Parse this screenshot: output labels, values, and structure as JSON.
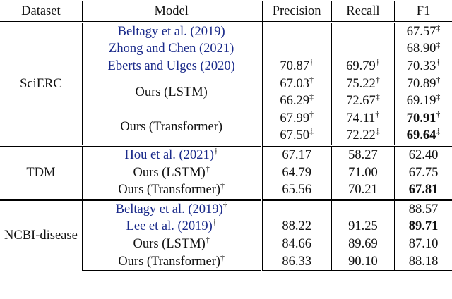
{
  "header": [
    "Dataset",
    "Model",
    "Precision",
    "Recall",
    "F1"
  ],
  "sections": [
    {
      "dataset": "SciERC",
      "models": [
        {
          "name": "Beltagy et al. (2019)",
          "cite": true,
          "results": [
            [
              null,
              null,
              {
                "value": "67.57",
                "mark": "‡"
              }
            ]
          ]
        },
        {
          "name": "Zhong and Chen (2021)",
          "cite": true,
          "results": [
            [
              null,
              null,
              {
                "value": "68.90",
                "mark": "‡"
              }
            ]
          ]
        },
        {
          "name": "Eberts and Ulges (2020)",
          "cite": true,
          "results": [
            [
              {
                "value": "70.87",
                "mark": "†"
              },
              {
                "value": "69.79",
                "mark": "†"
              },
              {
                "value": "70.33",
                "mark": "†"
              }
            ]
          ]
        },
        {
          "name": "Ours (LSTM)",
          "cite": false,
          "results": [
            [
              {
                "value": "67.03",
                "mark": "†"
              },
              {
                "value": "75.22",
                "mark": "†"
              },
              {
                "value": "70.89",
                "mark": "†"
              }
            ],
            [
              {
                "value": "66.29",
                "mark": "‡"
              },
              {
                "value": "72.67",
                "mark": "‡"
              },
              {
                "value": "69.19",
                "mark": "‡"
              }
            ]
          ]
        },
        {
          "name": "Ours (Transformer)",
          "cite": false,
          "results": [
            [
              {
                "value": "67.99",
                "mark": "†"
              },
              {
                "value": "74.11",
                "mark": "†"
              },
              {
                "value": "70.91",
                "mark": "†",
                "bold": true
              }
            ],
            [
              {
                "value": "67.50",
                "mark": "‡"
              },
              {
                "value": "72.22",
                "mark": "‡"
              },
              {
                "value": "69.64",
                "mark": "‡",
                "bold": true
              }
            ]
          ]
        }
      ]
    },
    {
      "dataset": "TDM",
      "models": [
        {
          "name": "Hou et al. (2021)",
          "mark": "†",
          "cite": true,
          "results": [
            [
              {
                "value": "67.17"
              },
              {
                "value": "58.27"
              },
              {
                "value": "62.40"
              }
            ]
          ]
        },
        {
          "name": "Ours (LSTM)",
          "mark": "†",
          "cite": false,
          "results": [
            [
              {
                "value": "64.79"
              },
              {
                "value": "71.00"
              },
              {
                "value": "67.75"
              }
            ]
          ]
        },
        {
          "name": "Ours (Transformer)",
          "mark": "†",
          "cite": false,
          "results": [
            [
              {
                "value": "65.56"
              },
              {
                "value": "70.21"
              },
              {
                "value": "67.81",
                "bold": true
              }
            ]
          ]
        }
      ]
    },
    {
      "dataset": "NCBI-disease",
      "models": [
        {
          "name": "Beltagy et al. (2019)",
          "mark": "†",
          "cite": true,
          "results": [
            [
              null,
              null,
              {
                "value": "88.57"
              }
            ]
          ]
        },
        {
          "name": "Lee et al. (2019)",
          "mark": "†",
          "cite": true,
          "results": [
            [
              {
                "value": "88.22"
              },
              {
                "value": "91.25"
              },
              {
                "value": "89.71",
                "bold": true
              }
            ]
          ]
        },
        {
          "name": "Ours (LSTM)",
          "mark": "†",
          "cite": false,
          "results": [
            [
              {
                "value": "84.66"
              },
              {
                "value": "89.69"
              },
              {
                "value": "87.10"
              }
            ]
          ]
        },
        {
          "name": "Ours (Transformer)",
          "mark": "†",
          "cite": false,
          "results": [
            [
              {
                "value": "86.33"
              },
              {
                "value": "90.10"
              },
              {
                "value": "88.18"
              }
            ]
          ]
        }
      ]
    }
  ]
}
